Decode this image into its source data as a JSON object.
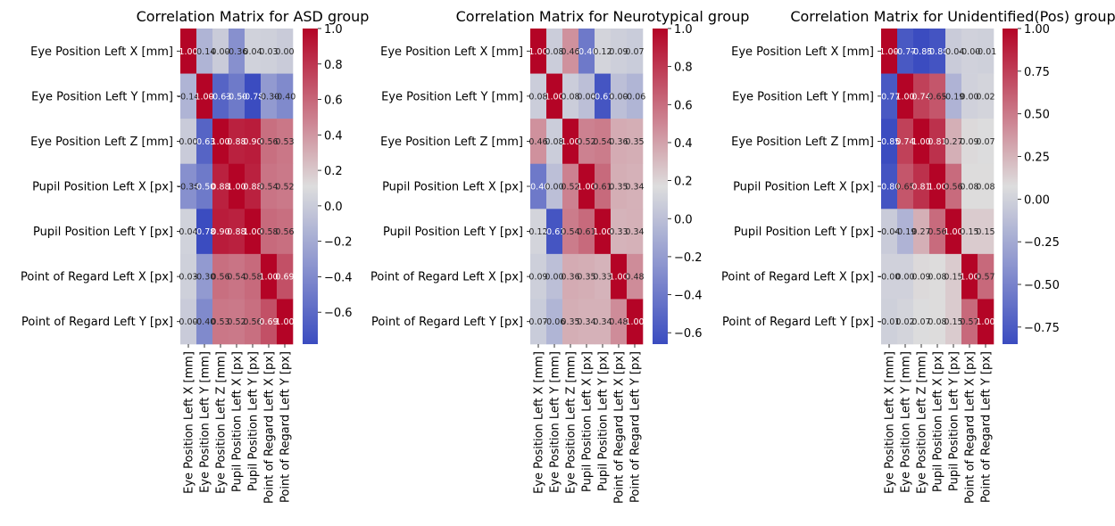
{
  "chart_data": [
    {
      "type": "heatmap",
      "title": "Correlation Matrix for ASD group",
      "labels": [
        "Eye Position Left X [mm]",
        "Eye Position Left Y [mm]",
        "Eye Position Left Z [mm]",
        "Pupil Position Left X [px]",
        "Pupil Position Left Y [px]",
        "Point of Regard Left X [px]",
        "Point of Regard Left Y [px]"
      ],
      "matrix": [
        [
          1.0,
          -0.14,
          0.0,
          -0.36,
          0.04,
          0.03,
          0.0
        ],
        [
          -0.14,
          1.0,
          -0.63,
          -0.5,
          -0.78,
          -0.3,
          -0.4
        ],
        [
          0.0,
          -0.63,
          1.0,
          0.88,
          0.9,
          0.56,
          0.53
        ],
        [
          -0.36,
          -0.5,
          0.88,
          1.0,
          0.88,
          0.54,
          0.52
        ],
        [
          0.04,
          -0.78,
          0.9,
          0.88,
          1.0,
          0.58,
          0.56
        ],
        [
          0.03,
          -0.3,
          0.56,
          0.54,
          0.58,
          1.0,
          0.69
        ],
        [
          0.0,
          -0.4,
          0.53,
          0.52,
          0.56,
          0.69,
          1.0
        ]
      ],
      "cell_text": [
        [
          "1.00",
          "-0.14",
          "0.00",
          "-0.36",
          "0.04",
          "0.03",
          "0.00"
        ],
        [
          "-0.14",
          "1.00",
          "-0.63",
          "-0.50",
          "-0.78",
          "-0.30",
          "-0.40"
        ],
        [
          "0.00",
          "-0.63",
          "1.00",
          "0.88",
          "0.90",
          "0.56",
          "0.53"
        ],
        [
          "-0.36",
          "-0.50",
          "0.88",
          "1.00",
          "0.88",
          "0.54",
          "0.52"
        ],
        [
          "0.04",
          "-0.78",
          "0.90",
          "0.88",
          "1.00",
          "0.58",
          "0.56"
        ],
        [
          "0.03",
          "-0.30",
          "0.56",
          "0.54",
          "0.58",
          "1.00",
          "0.69"
        ],
        [
          "0.00",
          "-0.40",
          "0.53",
          "0.52",
          "0.56",
          "0.69",
          "1.00"
        ]
      ],
      "colorbar": {
        "range": [
          -0.78,
          1.0
        ],
        "ticks": [
          -0.6,
          -0.4,
          -0.2,
          0.0,
          0.2,
          0.4,
          0.6,
          0.8,
          1.0
        ],
        "tick_labels": [
          "−0.6",
          "−0.4",
          "−0.2",
          "0.0",
          "0.2",
          "0.4",
          "0.6",
          "0.8",
          "1.0"
        ]
      },
      "colormap": [
        "#3b4cc0",
        "#dddddd",
        "#b40426"
      ]
    },
    {
      "type": "heatmap",
      "title": "Correlation Matrix for Neurotypical group",
      "labels": [
        "Eye Position Left X [mm]",
        "Eye Position Left Y [mm]",
        "Eye Position Left Z [mm]",
        "Pupil Position Left X [px]",
        "Pupil Position Left Y [px]",
        "Point of Regard Left X [px]",
        "Point of Regard Left Y [px]"
      ],
      "matrix": [
        [
          1.0,
          0.08,
          0.46,
          -0.4,
          0.12,
          0.09,
          0.07
        ],
        [
          0.08,
          1.0,
          0.08,
          0.0,
          -0.61,
          0.0,
          -0.06
        ],
        [
          0.46,
          0.08,
          1.0,
          0.52,
          0.54,
          0.36,
          0.35
        ],
        [
          -0.4,
          0.0,
          0.52,
          1.0,
          0.61,
          0.35,
          0.34
        ],
        [
          0.12,
          -0.61,
          0.54,
          0.61,
          1.0,
          0.33,
          0.34
        ],
        [
          0.09,
          0.0,
          0.36,
          0.35,
          0.33,
          1.0,
          0.48
        ],
        [
          0.07,
          -0.06,
          0.35,
          0.34,
          0.34,
          0.48,
          1.0
        ]
      ],
      "cell_text": [
        [
          "1.00",
          "0.08",
          "0.46",
          "-0.40",
          "0.12",
          "0.09",
          "0.07"
        ],
        [
          "0.08",
          "1.00",
          "0.08",
          "0.00",
          "-0.61",
          "0.00",
          "-0.06"
        ],
        [
          "0.46",
          "0.08",
          "1.00",
          "0.52",
          "0.54",
          "0.36",
          "0.35"
        ],
        [
          "-0.40",
          "0.00",
          "0.52",
          "1.00",
          "0.61",
          "0.35",
          "0.34"
        ],
        [
          "0.12",
          "-0.61",
          "0.54",
          "0.61",
          "1.00",
          "0.33",
          "0.34"
        ],
        [
          "0.09",
          "0.00",
          "0.36",
          "0.35",
          "0.33",
          "1.00",
          "0.48"
        ],
        [
          "0.07",
          "-0.06",
          "0.35",
          "0.34",
          "0.34",
          "0.48",
          "1.00"
        ]
      ],
      "colorbar": {
        "range": [
          -0.66,
          1.0
        ],
        "ticks": [
          -0.6,
          -0.4,
          -0.2,
          0.0,
          0.2,
          0.4,
          0.6,
          0.8,
          1.0
        ],
        "tick_labels": [
          "−0.6",
          "−0.4",
          "−0.2",
          "0.0",
          "0.2",
          "0.4",
          "0.6",
          "0.8",
          "1.0"
        ]
      },
      "colormap": [
        "#3b4cc0",
        "#dddddd",
        "#b40426"
      ]
    },
    {
      "type": "heatmap",
      "title": "Correlation Matrix for Unidentified(Pos) group",
      "labels": [
        "Eye Position Left X [mm]",
        "Eye Position Left Y [mm]",
        "Eye Position Left Z [mm]",
        "Pupil Position Left X [px]",
        "Pupil Position Left Y [px]",
        "Point of Regard Left X [px]",
        "Point of Regard Left Y [px]"
      ],
      "matrix": [
        [
          1.0,
          -0.77,
          -0.85,
          -0.8,
          -0.04,
          0.0,
          -0.01
        ],
        [
          -0.77,
          1.0,
          0.74,
          0.65,
          -0.19,
          0.0,
          0.02
        ],
        [
          -0.85,
          0.74,
          1.0,
          0.81,
          0.27,
          0.09,
          0.07
        ],
        [
          -0.8,
          0.65,
          0.81,
          1.0,
          0.56,
          0.08,
          0.08
        ],
        [
          -0.04,
          -0.19,
          0.27,
          0.56,
          1.0,
          0.15,
          0.15
        ],
        [
          0.0,
          0.0,
          0.09,
          0.08,
          0.15,
          1.0,
          0.57
        ],
        [
          -0.01,
          0.02,
          0.07,
          0.08,
          0.15,
          0.57,
          1.0
        ]
      ],
      "cell_text": [
        [
          "1.00",
          "-0.77",
          "-0.85",
          "-0.80",
          "-0.04",
          "-0.00",
          "-0.01"
        ],
        [
          "-0.77",
          "1.00",
          "0.74",
          "0.65",
          "-0.19",
          "0.00",
          "0.02"
        ],
        [
          "-0.85",
          "0.74",
          "1.00",
          "0.81",
          "0.27",
          "0.09",
          "0.07"
        ],
        [
          "-0.80",
          "0.65",
          "0.81",
          "1.00",
          "0.56",
          "0.08",
          "0.08"
        ],
        [
          "-0.04",
          "-0.19",
          "0.27",
          "0.56",
          "1.00",
          "0.15",
          "0.15"
        ],
        [
          "-0.00",
          "0.00",
          "0.09",
          "0.08",
          "0.15",
          "1.00",
          "0.57"
        ],
        [
          "-0.01",
          "0.02",
          "0.07",
          "0.08",
          "0.15",
          "0.57",
          "1.00"
        ]
      ],
      "colorbar": {
        "range": [
          -0.85,
          1.0
        ],
        "ticks": [
          -0.75,
          -0.5,
          -0.25,
          0.0,
          0.25,
          0.5,
          0.75,
          1.0
        ],
        "tick_labels": [
          "−0.75",
          "−0.50",
          "−0.25",
          "0.00",
          "0.25",
          "0.50",
          "0.75",
          "1.00"
        ]
      },
      "colormap": [
        "#3b4cc0",
        "#dddddd",
        "#b40426"
      ]
    }
  ]
}
